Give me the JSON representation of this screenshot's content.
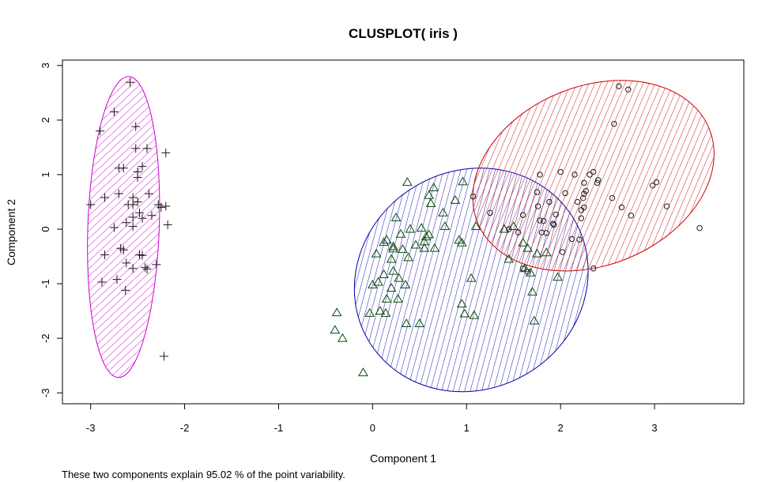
{
  "chart_data": {
    "type": "scatter",
    "title": "CLUSPLOT( iris )",
    "xlabel": "Component 1",
    "ylabel": "Component 2",
    "footnote": "These two components explain 95.02 % of the point variability.",
    "xlim": [
      -3.3,
      3.95
    ],
    "ylim": [
      -3.2,
      3.1
    ],
    "xticks": [
      "-3",
      "-2",
      "-1",
      "0",
      "1",
      "2",
      "3"
    ],
    "yticks": [
      "-3",
      "-2",
      "-1",
      "0",
      "1",
      "2",
      "3"
    ],
    "xtick_values": [
      -3,
      -2,
      -1,
      0,
      1,
      2,
      3
    ],
    "ytick_values": [
      -3,
      -2,
      -1,
      0,
      1,
      2,
      3
    ],
    "series": [
      {
        "marker": "plus",
        "color": "#1a1a1a",
        "points": [
          [
            -2.58,
            2.69
          ],
          [
            -2.75,
            2.15
          ],
          [
            -2.9,
            1.8
          ],
          [
            -2.52,
            1.88
          ],
          [
            -2.52,
            1.48
          ],
          [
            -2.4,
            1.48
          ],
          [
            -2.2,
            1.4
          ],
          [
            -2.45,
            1.15
          ],
          [
            -2.7,
            1.12
          ],
          [
            -2.65,
            1.12
          ],
          [
            -2.5,
            1.05
          ],
          [
            -2.5,
            0.95
          ],
          [
            -2.38,
            0.65
          ],
          [
            -2.7,
            0.65
          ],
          [
            -2.85,
            0.58
          ],
          [
            -2.55,
            0.58
          ],
          [
            -3.0,
            0.45
          ],
          [
            -2.6,
            0.45
          ],
          [
            -2.55,
            0.45
          ],
          [
            -2.28,
            0.45
          ],
          [
            -2.2,
            0.42
          ],
          [
            -2.25,
            0.4
          ],
          [
            -2.5,
            0.5
          ],
          [
            -2.48,
            0.3
          ],
          [
            -2.35,
            0.25
          ],
          [
            -2.55,
            0.22
          ],
          [
            -2.45,
            0.2
          ],
          [
            -2.62,
            0.12
          ],
          [
            -2.75,
            0.03
          ],
          [
            -2.55,
            0.05
          ],
          [
            -2.18,
            0.08
          ],
          [
            -2.65,
            -0.38
          ],
          [
            -2.68,
            -0.35
          ],
          [
            -2.48,
            -0.47
          ],
          [
            -2.85,
            -0.47
          ],
          [
            -2.45,
            -0.48
          ],
          [
            -2.62,
            -0.62
          ],
          [
            -2.3,
            -0.65
          ],
          [
            -2.55,
            -0.72
          ],
          [
            -2.42,
            -0.7
          ],
          [
            -2.4,
            -0.73
          ],
          [
            -2.72,
            -0.92
          ],
          [
            -2.88,
            -0.97
          ],
          [
            -2.63,
            -1.12
          ],
          [
            -2.22,
            -2.33
          ]
        ]
      },
      {
        "marker": "triangle",
        "color": "#0a4a0a",
        "points": [
          [
            0.37,
            0.86
          ],
          [
            0.96,
            0.87
          ],
          [
            0.65,
            0.76
          ],
          [
            0.88,
            0.53
          ],
          [
            0.6,
            0.62
          ],
          [
            0.62,
            0.47
          ],
          [
            0.75,
            0.3
          ],
          [
            0.25,
            0.21
          ],
          [
            0.52,
            0.02
          ],
          [
            0.4,
            0.0
          ],
          [
            0.57,
            -0.14
          ],
          [
            0.3,
            -0.09
          ],
          [
            0.6,
            -0.1
          ],
          [
            0.15,
            -0.2
          ],
          [
            0.12,
            -0.24
          ],
          [
            0.22,
            -0.32
          ],
          [
            0.22,
            -0.36
          ],
          [
            0.32,
            -0.37
          ],
          [
            0.46,
            -0.29
          ],
          [
            0.55,
            -0.23
          ],
          [
            0.55,
            -0.35
          ],
          [
            0.66,
            -0.35
          ],
          [
            0.04,
            -0.45
          ],
          [
            0.77,
            0.05
          ],
          [
            1.1,
            0.05
          ],
          [
            0.92,
            -0.2
          ],
          [
            0.95,
            -0.25
          ],
          [
            0.2,
            -0.55
          ],
          [
            0.38,
            -0.52
          ],
          [
            0.22,
            -0.77
          ],
          [
            0.12,
            -0.83
          ],
          [
            0.28,
            -0.9
          ],
          [
            0.35,
            -1.02
          ],
          [
            0.0,
            -1.02
          ],
          [
            0.06,
            -0.97
          ],
          [
            1.05,
            -0.9
          ],
          [
            0.2,
            -1.08
          ],
          [
            0.15,
            -1.28
          ],
          [
            0.27,
            -1.28
          ],
          [
            0.08,
            -1.5
          ],
          [
            0.14,
            -1.54
          ],
          [
            -0.03,
            -1.54
          ],
          [
            0.36,
            -1.73
          ],
          [
            0.5,
            -1.73
          ],
          [
            0.95,
            -1.37
          ],
          [
            0.98,
            -1.55
          ],
          [
            1.08,
            -1.58
          ],
          [
            -0.38,
            -1.53
          ],
          [
            -0.4,
            -1.85
          ],
          [
            -0.32,
            -2.0
          ],
          [
            -0.1,
            -2.63
          ],
          [
            1.5,
            0.05
          ],
          [
            1.4,
            0.0
          ],
          [
            1.6,
            -0.25
          ],
          [
            1.75,
            -0.45
          ],
          [
            1.85,
            -0.43
          ],
          [
            1.65,
            -0.35
          ],
          [
            1.45,
            -0.55
          ],
          [
            1.62,
            -0.72
          ],
          [
            1.68,
            -0.8
          ],
          [
            1.97,
            -0.88
          ],
          [
            1.7,
            -1.15
          ],
          [
            1.72,
            -1.68
          ]
        ]
      },
      {
        "marker": "circle",
        "color": "#1a1a1a",
        "points": [
          [
            2.62,
            2.62
          ],
          [
            2.72,
            2.56
          ],
          [
            2.57,
            1.93
          ],
          [
            1.78,
            1.0
          ],
          [
            2.0,
            1.05
          ],
          [
            2.15,
            1.0
          ],
          [
            2.31,
            1.0
          ],
          [
            2.35,
            1.05
          ],
          [
            2.25,
            0.85
          ],
          [
            2.4,
            0.9
          ],
          [
            2.39,
            0.85
          ],
          [
            2.98,
            0.8
          ],
          [
            3.02,
            0.86
          ],
          [
            2.05,
            0.66
          ],
          [
            2.25,
            0.65
          ],
          [
            2.27,
            0.7
          ],
          [
            2.24,
            0.57
          ],
          [
            2.18,
            0.5
          ],
          [
            2.55,
            0.57
          ],
          [
            1.88,
            0.5
          ],
          [
            2.25,
            0.4
          ],
          [
            2.65,
            0.4
          ],
          [
            2.22,
            0.35
          ],
          [
            1.75,
            0.68
          ],
          [
            1.95,
            0.27
          ],
          [
            2.22,
            0.2
          ],
          [
            2.75,
            0.25
          ],
          [
            3.13,
            0.42
          ],
          [
            3.48,
            0.02
          ],
          [
            1.76,
            0.42
          ],
          [
            1.6,
            0.26
          ],
          [
            1.78,
            0.16
          ],
          [
            1.82,
            0.15
          ],
          [
            1.93,
            0.08
          ],
          [
            1.92,
            0.1
          ],
          [
            1.85,
            -0.07
          ],
          [
            1.8,
            -0.06
          ],
          [
            1.55,
            -0.06
          ],
          [
            1.45,
            0.0
          ],
          [
            2.12,
            -0.18
          ],
          [
            2.2,
            -0.19
          ],
          [
            2.02,
            -0.42
          ],
          [
            2.35,
            -0.72
          ],
          [
            1.6,
            -0.72
          ],
          [
            1.65,
            -0.78
          ],
          [
            1.25,
            0.3
          ],
          [
            1.07,
            0.6
          ]
        ]
      }
    ],
    "ellipses": [
      {
        "cx": -2.65,
        "cy": 0.04,
        "rx": 0.38,
        "ry": 2.76,
        "angle": 2.0,
        "color": "#cc00cc"
      },
      {
        "cx": 1.05,
        "cy": -0.93,
        "rx": 1.27,
        "ry": 2.0,
        "angle": -30,
        "color": "#0000aa"
      },
      {
        "cx": 2.35,
        "cy": 0.98,
        "rx": 1.33,
        "ry": 1.64,
        "angle": -22,
        "color": "#cc0000"
      }
    ]
  }
}
